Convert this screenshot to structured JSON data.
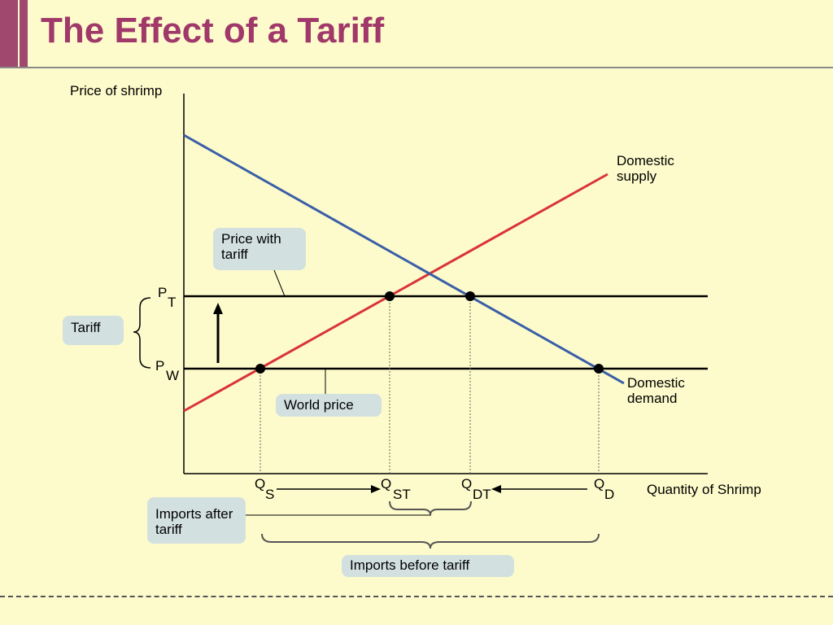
{
  "title": "The Effect of a Tariff",
  "axes": {
    "ylabel": "Price of shrimp",
    "xlabel": "Quantity of Shrimp"
  },
  "curves": {
    "supply": {
      "line1": "Domestic",
      "line2": "supply",
      "color": "#d9343a"
    },
    "demand": {
      "line1": "Domestic",
      "line2": "demand",
      "color": "#3a5ea8"
    }
  },
  "price_levels": {
    "pt": {
      "main": "P",
      "sub": "T"
    },
    "pw": {
      "main": "P",
      "sub": "W"
    }
  },
  "quantities": {
    "qs": {
      "main": "Q",
      "sub": "S"
    },
    "qst": {
      "main": "Q",
      "sub": "ST"
    },
    "qdt": {
      "main": "Q",
      "sub": "DT"
    },
    "qd": {
      "main": "Q",
      "sub": "D"
    }
  },
  "callouts": {
    "price_with_tariff": {
      "line1": "Price with",
      "line2": "tariff"
    },
    "tariff": "Tariff",
    "world_price": "World price",
    "imports_after_tariff": {
      "line1": "Imports after",
      "line2": "tariff"
    },
    "imports_before_tariff": "Imports before tariff"
  },
  "colors": {
    "title": "#a0386a",
    "background": "#fdfbcb",
    "callout_box": "#d3e0e0"
  }
}
